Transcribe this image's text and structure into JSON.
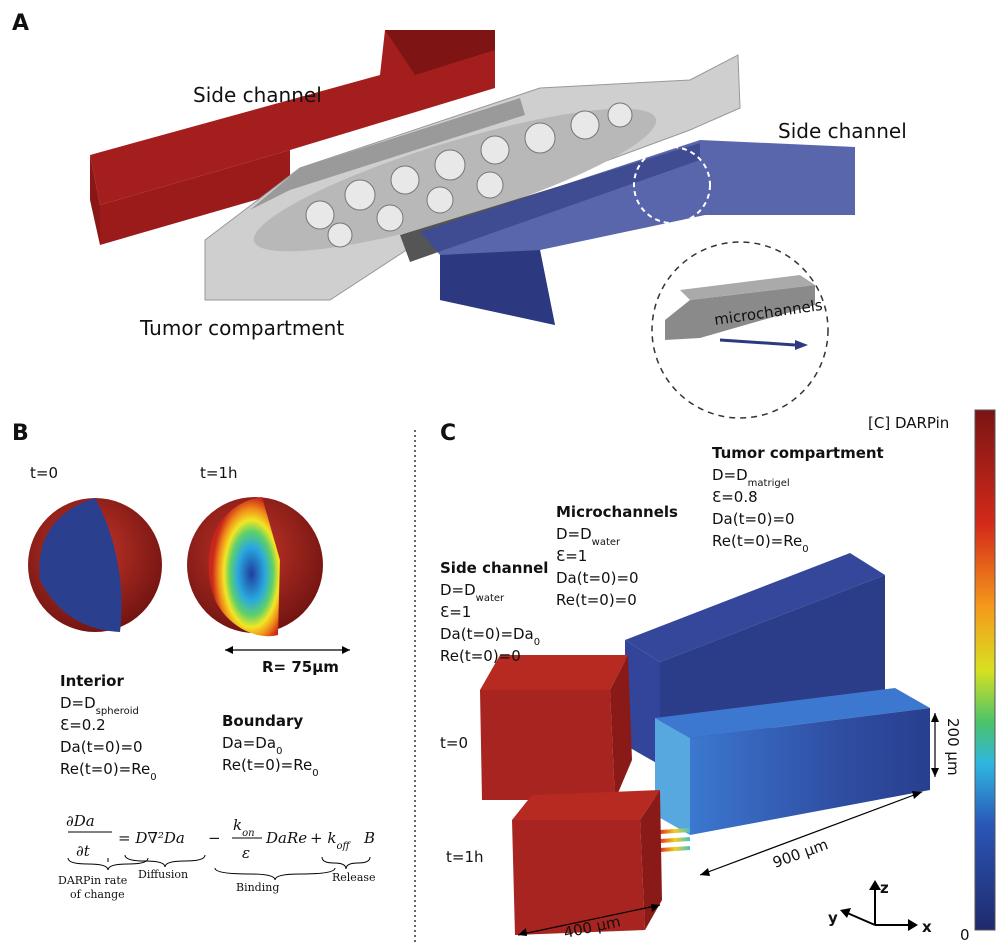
{
  "panel_a": {
    "label": "A",
    "side_channel_left": "Side channel",
    "side_channel_right": "Side channel",
    "tumor_compartment": "Tumor compartment",
    "inset": "microchannels"
  },
  "panel_b": {
    "label": "B",
    "t0": "t=0",
    "t1": "t=1h",
    "radius": "R= 75μm",
    "interior": {
      "title": "Interior",
      "lines": [
        {
          "text": "D=D",
          "sub": "spheroid"
        },
        "Ɛ=0.2",
        "Da(t=0)=0",
        {
          "text": "Re(t=0)=Re",
          "sub": "0"
        }
      ]
    },
    "boundary": {
      "title": "Boundary",
      "lines": [
        {
          "text": "Da=Da",
          "sub": "0"
        },
        {
          "text": "Re(t=0)=Re",
          "sub": "0"
        }
      ]
    },
    "equation": {
      "lhs_num": "∂Da",
      "lhs_den": "∂t",
      "lhs_note": [
        "DARPin rate",
        "of change"
      ],
      "diffusion": "= D∇²Da",
      "diffusion_note": "Diffusion",
      "minus": "−",
      "binding_num": {
        "text": "k",
        "sub": "on"
      },
      "binding_den": "ε",
      "binding_rest": "DaRe",
      "binding_note": "Binding",
      "release": {
        "text": "+ k",
        "sub": "off"
      },
      "release_rest": "B",
      "release_note": "Release"
    }
  },
  "panel_c": {
    "label": "C",
    "t0": "t=0",
    "t1": "t=1h",
    "tumor": {
      "title": "Tumor compartment",
      "lines": [
        {
          "text": "D=D",
          "sub": "matrigel"
        },
        "Ɛ=0.8",
        "Da(t=0)=0",
        {
          "text": "Re(t=0)=Re",
          "sub": "0"
        }
      ]
    },
    "micro": {
      "title": "Microchannels",
      "lines": [
        {
          "text": "D=D",
          "sub": "water"
        },
        "Ɛ=1",
        "Da(t=0)=0",
        "Re(t=0)=0"
      ]
    },
    "side": {
      "title": "Side channel",
      "lines": [
        {
          "text": "D=D",
          "sub": "water"
        },
        "Ɛ=1",
        {
          "text": "Da(t=0)=Da",
          "sub": "0"
        },
        "Re(t=0)=0"
      ]
    },
    "height": "200 μm",
    "length": "900 μm",
    "width": "400 μm",
    "axes": {
      "z": "z",
      "y": "y",
      "x": "x"
    },
    "colorbar_title": "[C] DARPin",
    "colorbar_min": "0"
  }
}
